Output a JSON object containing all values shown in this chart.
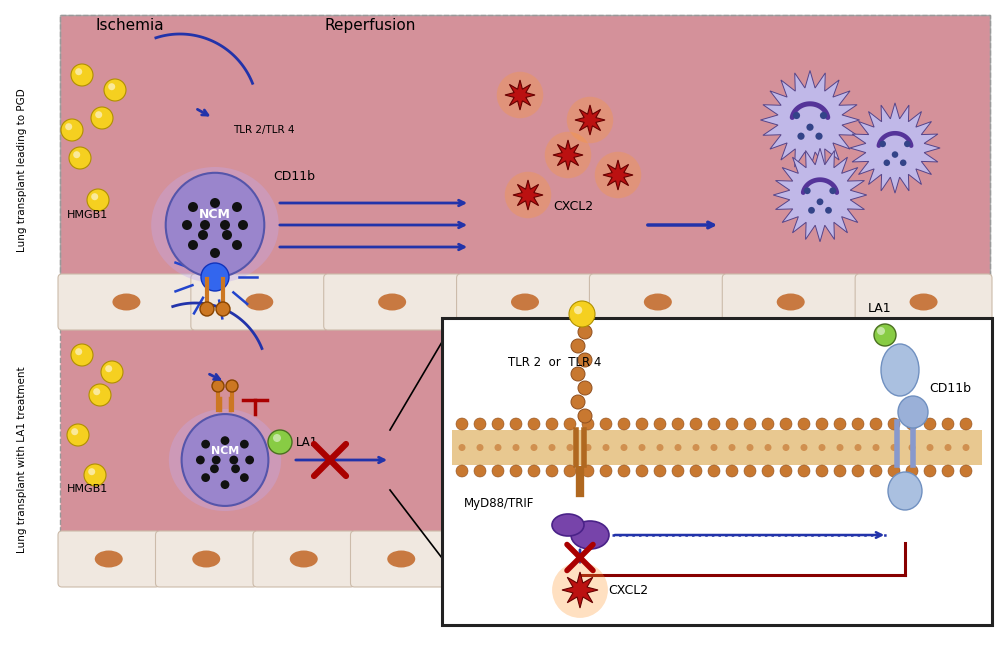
{
  "bg_pink": "#d4919a",
  "cell_color": "#f0e8e0",
  "nucleus_color": "#c87941",
  "title_ischemia": "Ischemia",
  "title_reperfusion": "Reperfusion",
  "label_top": "Lung transplant leading to PGD",
  "label_bottom": "Lung transplant with LA1 treatment",
  "hmgb1_color": "#f5d020",
  "ncm_body_color": "#9080c0",
  "arrow_blue": "#2233aa",
  "inhibit_red": "#aa0000",
  "neutrophil_color": "#c0b8e8",
  "star_color": "#bb1111",
  "la1_green": "#88cc44",
  "inset_bg": "#ffffff",
  "inset_border": "#222222",
  "ncm_label": "NCM",
  "tlr_label": "TLR 2/TLR 4",
  "cd11b_label": "CD11b",
  "cxcl2_label": "CXCL2",
  "hmgb1_label": "HMGB1",
  "la1_label": "LA1",
  "myd88_label": "MyD88/TRIF",
  "tlr_inset_label": "TLR 2  or  TLR 4",
  "mem_tan": "#e8c890",
  "mem_circle": "#c87830"
}
